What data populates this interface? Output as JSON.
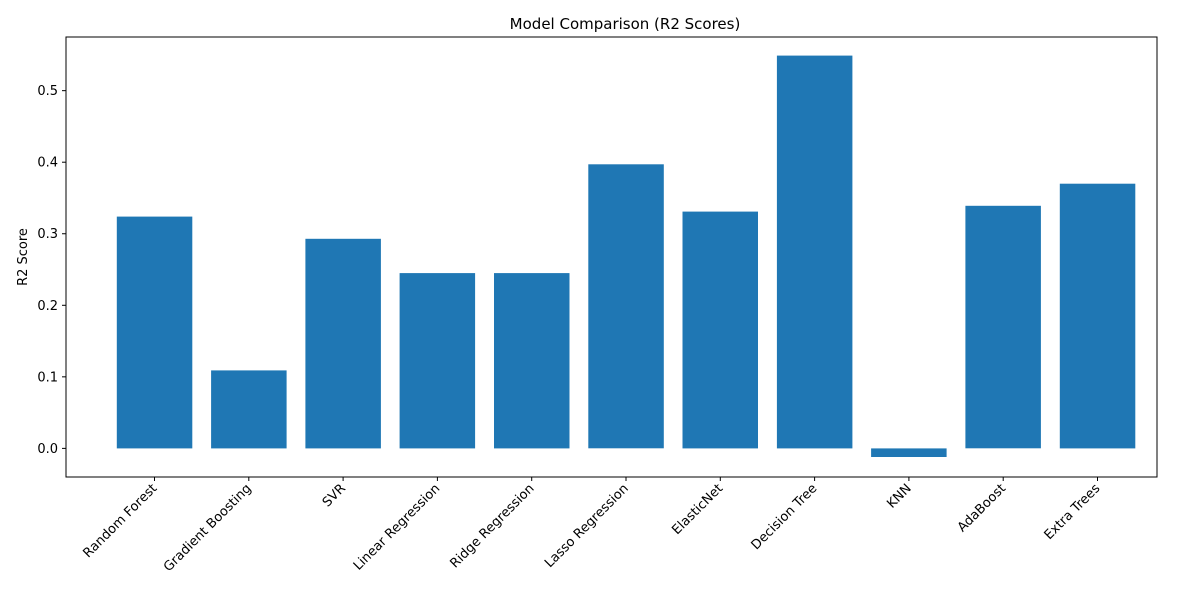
{
  "chart_data": {
    "type": "bar",
    "title": "Model Comparison (R2 Scores)",
    "xlabel": "",
    "ylabel": "R2 Score",
    "categories": [
      "Random Forest",
      "Gradient Boosting",
      "SVR",
      "Linear Regression",
      "Ridge Regression",
      "Lasso Regression",
      "ElasticNet",
      "Decision Tree",
      "KNN",
      "AdaBoost",
      "Extra Trees"
    ],
    "values": [
      0.324,
      0.109,
      0.293,
      0.245,
      0.245,
      0.397,
      0.331,
      0.549,
      -0.012,
      0.339,
      0.37
    ],
    "ylim": [
      -0.04,
      0.575
    ],
    "yticks": [
      "0.0",
      "0.1",
      "0.2",
      "0.3",
      "0.4",
      "0.5"
    ],
    "grid": false,
    "bar_color": "#1f77b4"
  }
}
